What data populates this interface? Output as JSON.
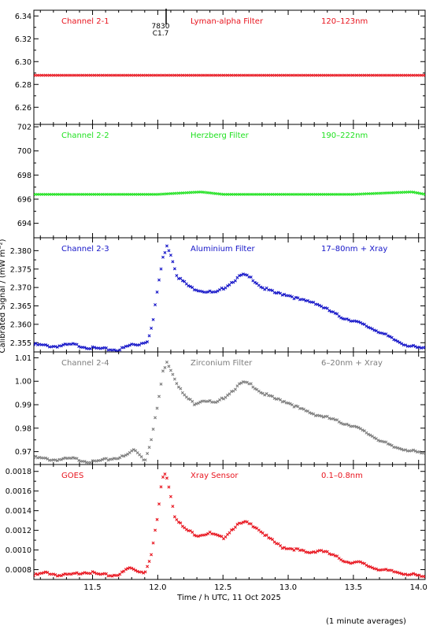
{
  "xlabel": "Time / h UTC, 11 Oct 2025",
  "ylabel": "Calibrated Signal / (mW m⁻²)",
  "footer": "(1 minute averages)",
  "flare_marker": {
    "label_top": "7830",
    "label_bottom": "C1.7",
    "x": 12.04
  },
  "colors": {
    "red": "#e8141e",
    "green": "#1ee11e",
    "blue": "#1414c8",
    "gray": "#7d7d7d",
    "axis": "#000000"
  },
  "chart_data": [
    {
      "type": "scatter",
      "title": "Channel 2-1",
      "filter": "Lyman-alpha Filter",
      "band": "120–123nm",
      "color": "#e8141e",
      "xlim": [
        11.05,
        14.05
      ],
      "ylim": [
        6.245,
        6.345
      ],
      "yticks": [
        "6.26",
        "6.28",
        "6.30",
        "6.32",
        "6.34"
      ],
      "ytick_values": [
        6.26,
        6.28,
        6.3,
        6.32,
        6.34
      ],
      "x": [
        11.05,
        11.5,
        12.0,
        12.5,
        13.0,
        13.5,
        14.05
      ],
      "y": [
        6.288,
        6.288,
        6.288,
        6.288,
        6.288,
        6.288,
        6.288
      ]
    },
    {
      "type": "scatter",
      "title": "Channel 2-2",
      "filter": "Herzberg Filter",
      "band": "190–222nm",
      "color": "#1ee11e",
      "xlim": [
        11.05,
        14.05
      ],
      "ylim": [
        692.8,
        702.2
      ],
      "yticks": [
        "694",
        "696",
        "698",
        "700",
        "702"
      ],
      "ytick_values": [
        694,
        696,
        698,
        700,
        702
      ],
      "x": [
        11.05,
        11.5,
        12.0,
        12.33,
        12.5,
        13.0,
        13.5,
        13.95,
        14.05
      ],
      "y": [
        696.4,
        696.4,
        696.4,
        696.6,
        696.4,
        696.4,
        696.4,
        696.6,
        696.4
      ]
    },
    {
      "type": "scatter",
      "title": "Channel 2-3",
      "filter": "Aluminium Filter",
      "band": "17–80nm + Xray",
      "color": "#1414c8",
      "xlim": [
        11.05,
        14.05
      ],
      "ylim": [
        2.3525,
        2.3835
      ],
      "yticks": [
        "2.355",
        "2.360",
        "2.365",
        "2.370",
        "2.375",
        "2.380"
      ],
      "ytick_values": [
        2.355,
        2.36,
        2.365,
        2.37,
        2.375,
        2.38
      ],
      "x": [
        11.05,
        11.2,
        11.35,
        11.5,
        11.7,
        11.8,
        11.85,
        11.92,
        11.96,
        12.0,
        12.04,
        12.07,
        12.1,
        12.15,
        12.25,
        12.35,
        12.45,
        12.55,
        12.65,
        12.72,
        12.8,
        12.9,
        13.0,
        13.1,
        13.2,
        13.3,
        13.4,
        13.5,
        13.6,
        13.7,
        13.8,
        13.9,
        14.0,
        14.05
      ],
      "y": [
        2.3545,
        2.354,
        2.3545,
        2.3535,
        2.353,
        2.3545,
        2.3545,
        2.3555,
        2.36,
        2.37,
        2.378,
        2.3815,
        2.379,
        2.373,
        2.37,
        2.369,
        2.3685,
        2.371,
        2.3735,
        2.3725,
        2.37,
        2.3685,
        2.368,
        2.3665,
        2.366,
        2.364,
        2.362,
        2.361,
        2.3595,
        2.358,
        2.356,
        2.3545,
        2.3535,
        2.3535
      ]
    },
    {
      "type": "scatter",
      "title": "Channel 2-4",
      "filter": "Zirconium Filter",
      "band": "6–20nm + Xray",
      "color": "#7d7d7d",
      "xlim": [
        11.05,
        14.05
      ],
      "ylim": [
        0.9645,
        1.0125
      ],
      "yticks": [
        "0.97",
        "0.98",
        "0.99",
        "1.00",
        "1.01"
      ],
      "ytick_values": [
        0.97,
        0.98,
        0.99,
        1.0,
        1.01
      ],
      "x": [
        11.05,
        11.2,
        11.35,
        11.5,
        11.6,
        11.75,
        11.82,
        11.86,
        11.9,
        11.95,
        12.0,
        12.04,
        12.07,
        12.1,
        12.15,
        12.2,
        12.28,
        12.35,
        12.45,
        12.55,
        12.65,
        12.72,
        12.8,
        12.9,
        13.0,
        13.1,
        13.2,
        13.3,
        13.4,
        13.5,
        13.6,
        13.7,
        13.8,
        13.9,
        14.0,
        14.05
      ],
      "y": [
        0.9675,
        0.9665,
        0.967,
        0.9655,
        0.9665,
        0.968,
        0.971,
        0.969,
        0.966,
        0.975,
        0.99,
        1.004,
        1.0085,
        1.005,
        0.999,
        0.994,
        0.9905,
        0.992,
        0.9905,
        0.995,
        0.9995,
        0.9985,
        0.995,
        0.9925,
        0.991,
        0.988,
        0.986,
        0.9845,
        0.9825,
        0.981,
        0.978,
        0.975,
        0.972,
        0.971,
        0.9695,
        0.969
      ]
    },
    {
      "type": "scatter",
      "title": "GOES",
      "filter": "Xray Sensor",
      "band": "0.1–0.8nm",
      "color": "#e8141e",
      "xlim": [
        11.05,
        14.05
      ],
      "ylim": [
        0.0007,
        0.00187
      ],
      "yticks": [
        "0.0008",
        "0.0010",
        "0.0012",
        "0.0014",
        "0.0016",
        "0.0018"
      ],
      "ytick_values": [
        0.0008,
        0.001,
        0.0012,
        0.0014,
        0.0016,
        0.0018
      ],
      "x": [
        11.05,
        11.15,
        11.25,
        11.35,
        11.45,
        11.55,
        11.65,
        11.72,
        11.78,
        11.84,
        11.9,
        11.95,
        12.0,
        12.03,
        12.06,
        12.09,
        12.13,
        12.2,
        12.3,
        12.4,
        12.5,
        12.6,
        12.67,
        12.75,
        12.85,
        12.95,
        13.05,
        13.15,
        13.25,
        13.35,
        13.45,
        13.55,
        13.65,
        13.75,
        13.85,
        13.95,
        14.05
      ],
      "y": [
        0.00074,
        0.00077,
        0.00074,
        0.00075,
        0.00078,
        0.00075,
        0.00074,
        0.00076,
        0.00082,
        0.00079,
        0.00077,
        0.00095,
        0.00135,
        0.0017,
        0.0018,
        0.00162,
        0.00135,
        0.00122,
        0.00115,
        0.00117,
        0.00112,
        0.00125,
        0.00128,
        0.00124,
        0.00112,
        0.00103,
        0.00101,
        0.00097,
        0.001,
        0.00094,
        0.00088,
        0.00087,
        0.00082,
        0.00079,
        0.00077,
        0.00075,
        0.00072
      ]
    }
  ]
}
